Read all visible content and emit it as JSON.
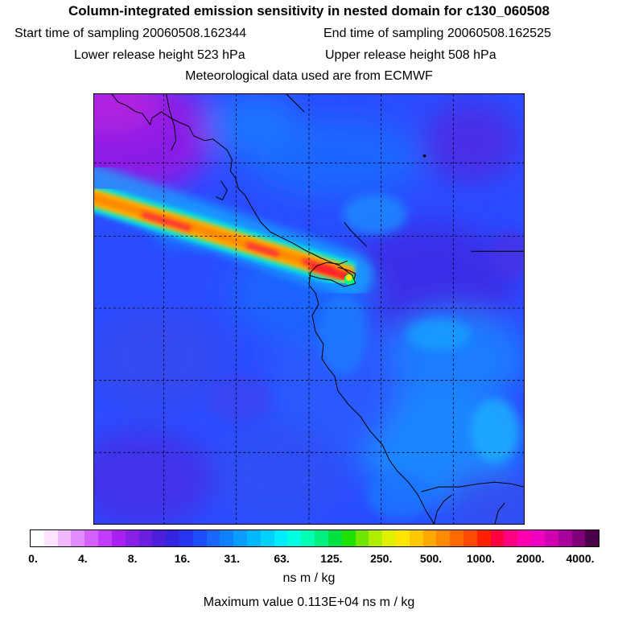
{
  "header": {
    "title": "Column-integrated emission sensitivity in nested domain for c130_060508",
    "start_time": "Start time of sampling 20060508.162344",
    "end_time": "End time of sampling 20060508.162525",
    "lower_release": "Lower release height  523 hPa",
    "upper_release": "Upper release height  508 hPa",
    "met_data": "Meteorological data used are from ECMWF"
  },
  "colors": {
    "background_field": "#2a56ff",
    "plume_core": "#ff1e3c",
    "plume_mid": "#ffb400",
    "plume_edge": "#19e6d2",
    "northwest_corner": "#9b1fe0"
  },
  "legend": {
    "tick_labels": [
      "0.",
      "4.",
      "8.",
      "16.",
      "31.",
      "63.",
      "125.",
      "250.",
      "500.",
      "1000.",
      "2000.",
      "4000."
    ],
    "colors": [
      "#ffffff",
      "#fde3ff",
      "#f2b8ff",
      "#e38cff",
      "#d461ff",
      "#c23bff",
      "#aa1ff2",
      "#8a1fe6",
      "#6a1fe0",
      "#4d1fdc",
      "#3524e0",
      "#2636f0",
      "#1e4cff",
      "#1a66ff",
      "#0f80ff",
      "#0a9cff",
      "#00b8ff",
      "#00d2ff",
      "#00ecff",
      "#00ffe0",
      "#00ffb0",
      "#00f080",
      "#00e040",
      "#20e000",
      "#70e600",
      "#b0ee00",
      "#e0f000",
      "#ffe600",
      "#ffc800",
      "#ffa800",
      "#ff8a00",
      "#ff6a00",
      "#ff4a00",
      "#ff2000",
      "#ff0040",
      "#ff0080",
      "#ff00b0",
      "#f000c0",
      "#d000b0",
      "#a8009a",
      "#80007a",
      "#4d004a"
    ],
    "unit": "ns m / kg",
    "max_value": "Maximum value  0.113E+04 ns m / kg"
  }
}
